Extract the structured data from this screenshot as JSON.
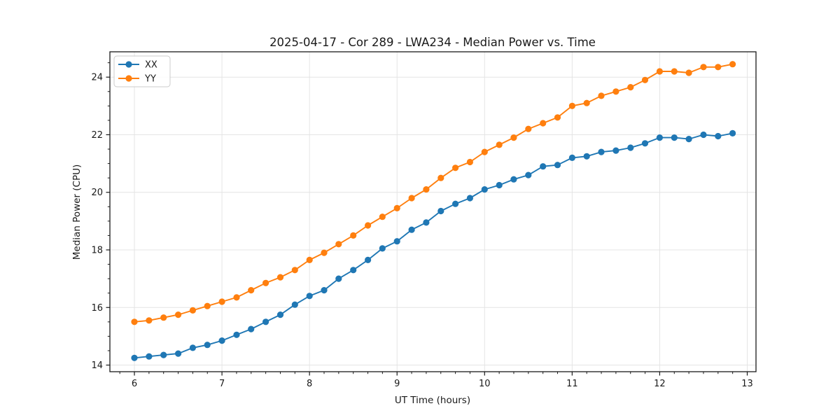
{
  "figure": {
    "title": "2025-04-17 - Cor 289 - LWA234 - Median Power vs. Time"
  },
  "chart_data": {
    "type": "line",
    "title": "2025-04-17 - Cor 289 - LWA234 - Median Power vs. Time",
    "xlabel": "UT Time (hours)",
    "ylabel": "Median Power (CPU)",
    "x": [
      6.0,
      6.167,
      6.333,
      6.5,
      6.667,
      6.833,
      7.0,
      7.167,
      7.333,
      7.5,
      7.667,
      7.833,
      8.0,
      8.167,
      8.333,
      8.5,
      8.667,
      8.833,
      9.0,
      9.167,
      9.333,
      9.5,
      9.667,
      9.833,
      10.0,
      10.167,
      10.333,
      10.5,
      10.667,
      10.833,
      11.0,
      11.167,
      11.333,
      11.5,
      11.667,
      11.833,
      12.0,
      12.167,
      12.333,
      12.5,
      12.667,
      12.833
    ],
    "series": [
      {
        "name": "XX",
        "color": "#1f77b4",
        "values": [
          14.25,
          14.3,
          14.35,
          14.4,
          14.6,
          14.7,
          14.85,
          15.05,
          15.25,
          15.5,
          15.75,
          16.1,
          16.4,
          16.6,
          17.0,
          17.3,
          17.65,
          18.05,
          18.3,
          18.7,
          18.95,
          19.35,
          19.6,
          19.8,
          20.1,
          20.25,
          20.45,
          20.6,
          20.9,
          20.95,
          21.2,
          21.25,
          21.4,
          21.45,
          21.55,
          21.7,
          21.9,
          21.9,
          21.85,
          22.0,
          21.95,
          22.05
        ]
      },
      {
        "name": "YY",
        "color": "#ff7f0e",
        "values": [
          15.5,
          15.55,
          15.65,
          15.75,
          15.9,
          16.05,
          16.2,
          16.35,
          16.6,
          16.85,
          17.05,
          17.3,
          17.65,
          17.9,
          18.2,
          18.5,
          18.85,
          19.15,
          19.45,
          19.8,
          20.1,
          20.5,
          20.85,
          21.05,
          21.4,
          21.65,
          21.9,
          22.2,
          22.4,
          22.6,
          23.0,
          23.1,
          23.35,
          23.5,
          23.65,
          23.9,
          24.2,
          24.2,
          24.15,
          24.35,
          24.35,
          24.45
        ]
      }
    ],
    "xlim": [
      5.72,
      13.1
    ],
    "ylim": [
      13.77,
      24.88
    ],
    "xticks": [
      6,
      7,
      8,
      9,
      10,
      11,
      12,
      13
    ],
    "yticks": [
      14,
      16,
      18,
      20,
      22,
      24
    ],
    "x_minor_step": 0.166667,
    "y_minor_step": 0.5,
    "grid": true,
    "legend_position": "upper-left",
    "colors": {
      "grid": "#e4e4e4",
      "spine": "#1a1a1a",
      "text": "#1a1a1a",
      "legend_border": "#cccccc"
    }
  }
}
